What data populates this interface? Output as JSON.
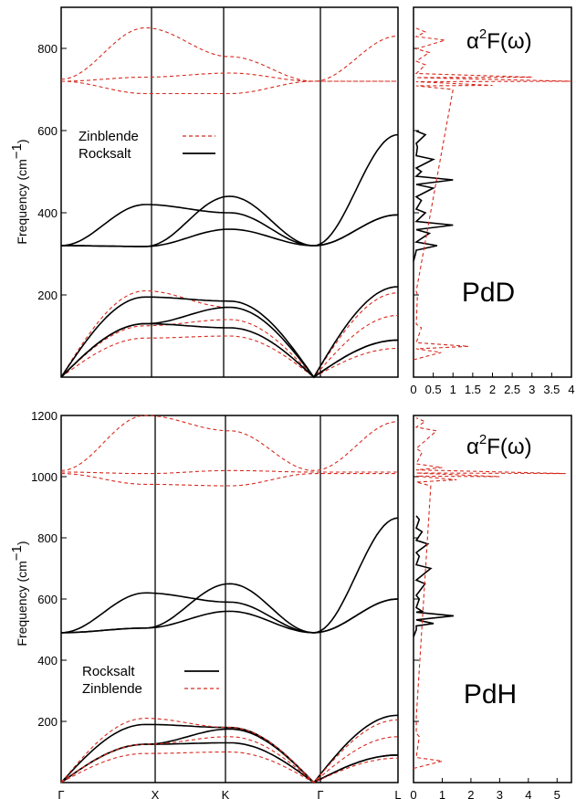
{
  "chart_data": [
    {
      "type": "line",
      "panel": "PdD phonon dispersion",
      "ylabel": "Frequency (cm",
      "ylabel_sup": "−1",
      "ylabel_close": ")",
      "ylim": [
        0,
        900
      ],
      "yticks": [
        200,
        400,
        600,
        800
      ],
      "xticks": [
        "Γ",
        "X",
        "K",
        "Γ",
        "L"
      ],
      "legend": [
        "Zinblende",
        "Rocksalt"
      ],
      "legend_placement": "upper-left",
      "series": [
        {
          "name": "Zinblende",
          "style": "dashed-red",
          "bands": [
            {
              "x": [
                0,
                1,
                2,
                3,
                4
              ],
              "y": [
                0,
                95,
                100,
                0,
                70
              ]
            },
            {
              "x": [
                0,
                1,
                2,
                3,
                4
              ],
              "y": [
                0,
                125,
                140,
                0,
                150
              ]
            },
            {
              "x": [
                0,
                1,
                2,
                3,
                4
              ],
              "y": [
                0,
                210,
                170,
                0,
                205
              ]
            },
            {
              "x": [
                0,
                1,
                2,
                3,
                4
              ],
              "y": [
                720,
                690,
                690,
                720,
                720
              ]
            },
            {
              "x": [
                0,
                1,
                2,
                3,
                4
              ],
              "y": [
                720,
                730,
                740,
                720,
                720
              ]
            },
            {
              "x": [
                0,
                1,
                2,
                3,
                4
              ],
              "y": [
                725,
                850,
                780,
                720,
                830
              ]
            }
          ]
        },
        {
          "name": "Rocksalt",
          "style": "solid-black",
          "bands": [
            {
              "x": [
                0,
                1,
                2,
                3,
                4
              ],
              "y": [
                0,
                130,
                120,
                0,
                90
              ]
            },
            {
              "x": [
                0,
                1,
                2,
                3,
                4
              ],
              "y": [
                0,
                130,
                170,
                0,
                90
              ]
            },
            {
              "x": [
                0,
                1,
                2,
                3,
                4
              ],
              "y": [
                0,
                195,
                185,
                0,
                220
              ]
            },
            {
              "x": [
                0,
                1,
                2,
                3,
                4
              ],
              "y": [
                320,
                318,
                360,
                320,
                395
              ]
            },
            {
              "x": [
                0,
                1,
                2,
                3,
                4
              ],
              "y": [
                320,
                318,
                440,
                320,
                590
              ]
            },
            {
              "x": [
                0,
                1,
                2,
                3,
                4
              ],
              "y": [
                320,
                420,
                400,
                320,
                395
              ]
            }
          ]
        }
      ],
      "label": "PdD",
      "eliashberg": {
        "label_prefix": "α",
        "label_sup": "2",
        "label_suffix": "F(ω)",
        "xlim": [
          0,
          4
        ],
        "xticks": [
          "0",
          "0.5",
          "1",
          "1.5",
          "2",
          "2.5",
          "3",
          "3.5",
          "4"
        ],
        "black": {
          "freq": [
            300,
            320,
            350,
            370,
            400,
            430,
            460,
            480,
            500,
            530,
            560,
            590
          ],
          "value": [
            0.05,
            0.6,
            0.4,
            1.0,
            0.3,
            0.2,
            0.5,
            1.0,
            0.2,
            0.5,
            0.1,
            0.3
          ]
        },
        "red": {
          "freq": [
            60,
            75,
            120,
            200,
            700,
            710,
            720,
            730,
            760,
            790,
            820,
            840
          ],
          "value": [
            0.7,
            1.4,
            0.2,
            0.1,
            1.0,
            2.0,
            4.0,
            3.0,
            0.3,
            0.4,
            0.8,
            0.3
          ]
        }
      }
    },
    {
      "type": "line",
      "panel": "PdH phonon dispersion",
      "ylabel": "Frequency (cm",
      "ylabel_sup": "−1",
      "ylabel_close": ")",
      "ylim": [
        0,
        1200
      ],
      "yticks": [
        200,
        400,
        600,
        800,
        1000,
        1200
      ],
      "xticks": [
        "Γ",
        "X",
        "K",
        "Γ",
        "L"
      ],
      "legend": [
        "Rocksalt",
        "Zinblende"
      ],
      "legend_placement": "lower-left",
      "series": [
        {
          "name": "Rocksalt",
          "style": "solid-black",
          "bands": [
            {
              "x": [
                0,
                1,
                2,
                3,
                4
              ],
              "y": [
                0,
                125,
                130,
                0,
                90
              ]
            },
            {
              "x": [
                0,
                1,
                2,
                3,
                4
              ],
              "y": [
                0,
                125,
                175,
                0,
                90
              ]
            },
            {
              "x": [
                0,
                1,
                2,
                3,
                4
              ],
              "y": [
                0,
                190,
                180,
                0,
                220
              ]
            },
            {
              "x": [
                0,
                1,
                2,
                3,
                4
              ],
              "y": [
                490,
                505,
                560,
                490,
                600
              ]
            },
            {
              "x": [
                0,
                1,
                2,
                3,
                4
              ],
              "y": [
                490,
                505,
                650,
                490,
                865
              ]
            },
            {
              "x": [
                0,
                1,
                2,
                3,
                4
              ],
              "y": [
                490,
                620,
                590,
                490,
                600
              ]
            }
          ]
        },
        {
          "name": "Zinblende",
          "style": "dashed-red",
          "bands": [
            {
              "x": [
                0,
                1,
                2,
                3,
                4
              ],
              "y": [
                0,
                95,
                100,
                0,
                80
              ]
            },
            {
              "x": [
                0,
                1,
                2,
                3,
                4
              ],
              "y": [
                0,
                125,
                150,
                0,
                150
              ]
            },
            {
              "x": [
                0,
                1,
                2,
                3,
                4
              ],
              "y": [
                0,
                210,
                180,
                0,
                205
              ]
            },
            {
              "x": [
                0,
                1,
                2,
                3,
                4
              ],
              "y": [
                1010,
                975,
                970,
                1010,
                1010
              ]
            },
            {
              "x": [
                0,
                1,
                2,
                3,
                4
              ],
              "y": [
                1015,
                1010,
                1020,
                1015,
                1015
              ]
            },
            {
              "x": [
                0,
                1,
                2,
                3,
                4
              ],
              "y": [
                1020,
                1200,
                1150,
                1020,
                1180
              ]
            }
          ]
        }
      ],
      "label": "PdH",
      "eliashberg": {
        "label_prefix": "α",
        "label_sup": "2",
        "label_suffix": "F(ω)",
        "xlim": [
          0,
          5.5
        ],
        "xticks": [
          "0",
          "1",
          "2",
          "3",
          "4",
          "5"
        ],
        "black": {
          "freq": [
            500,
            520,
            545,
            560,
            600,
            650,
            700,
            740,
            780,
            820,
            860
          ],
          "value": [
            0.1,
            0.7,
            1.4,
            0.3,
            0.2,
            0.4,
            0.6,
            0.2,
            0.5,
            0.3,
            0.2
          ]
        },
        "red": {
          "freq": [
            70,
            150,
            200,
            970,
            990,
            1000,
            1010,
            1030,
            1080,
            1150,
            1180
          ],
          "value": [
            1.0,
            0.2,
            0.1,
            0.6,
            1.5,
            3.0,
            5.3,
            1.0,
            0.3,
            0.8,
            0.4
          ]
        }
      }
    }
  ]
}
